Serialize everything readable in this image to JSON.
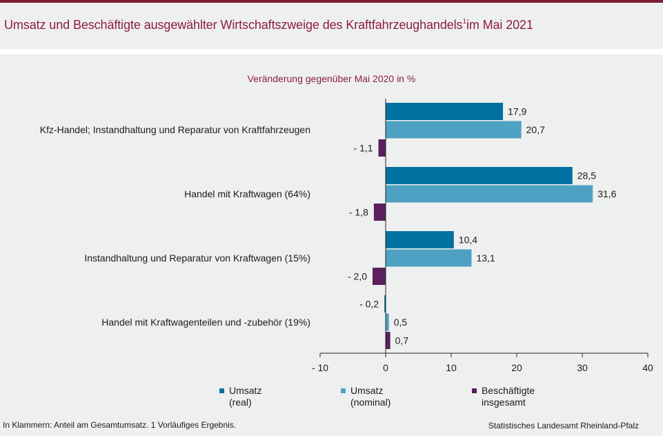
{
  "header": {
    "title": "Umsatz und Beschäftigte ausgewählter Wirtschaftszweige des Kraftfahrzeughandels",
    "title_sup": "1",
    "title_suffix": "im Mai 2021"
  },
  "chart_data": {
    "type": "bar",
    "orientation": "horizontal",
    "subtitle": "Veränderung gegenüber Mai 2020 in %",
    "categories": [
      "Kfz-Handel; Instandhaltung und Reparatur von Kraftfahrzeugen",
      "Handel mit Kraftwagen (64%)",
      "Instandhaltung und Reparatur von Kraftwagen (15%)",
      "Handel mit Kraftwagenteilen und -zubehör (19%)"
    ],
    "series": [
      {
        "name": "Umsatz (real)",
        "color": "#0071a0",
        "values": [
          17.9,
          28.5,
          10.4,
          -0.2
        ],
        "labels": [
          "17,9",
          "28,5",
          "10,4",
          "- 0,2"
        ]
      },
      {
        "name": "Umsatz (nominal)",
        "color": "#4ea1c2",
        "values": [
          20.7,
          31.6,
          13.1,
          0.5
        ],
        "labels": [
          "20,7",
          "31,6",
          "13,1",
          "0,5"
        ]
      },
      {
        "name": "Beschäftigte insgesamt",
        "color": "#5a1f5c",
        "values": [
          -1.1,
          -1.8,
          -2.0,
          0.7
        ],
        "labels": [
          "- 1,1",
          "- 1,8",
          "- 2,0",
          "0,7"
        ]
      }
    ],
    "xlim": [
      -10,
      40
    ],
    "xticks": [
      -10,
      0,
      10,
      20,
      30,
      40
    ],
    "xtick_labels": [
      "- 10",
      "0",
      "10",
      "20",
      "30",
      "40"
    ],
    "grid": false,
    "legend_position": "bottom"
  },
  "legend": [
    {
      "line1": "Umsatz",
      "line2": "(real)",
      "color": "#0071a0"
    },
    {
      "line1": "Umsatz",
      "line2": "(nominal)",
      "color": "#4ea1c2"
    },
    {
      "line1": "Beschäftigte",
      "line2": "insgesamt",
      "color": "#5a1f5c"
    }
  ],
  "footer": {
    "note": "In Klammern: Anteil am Gesamtumsatz. 1 Vorläufiges Ergebnis.",
    "source": "Statistisches Landesamt Rheinland-Pfalz"
  }
}
